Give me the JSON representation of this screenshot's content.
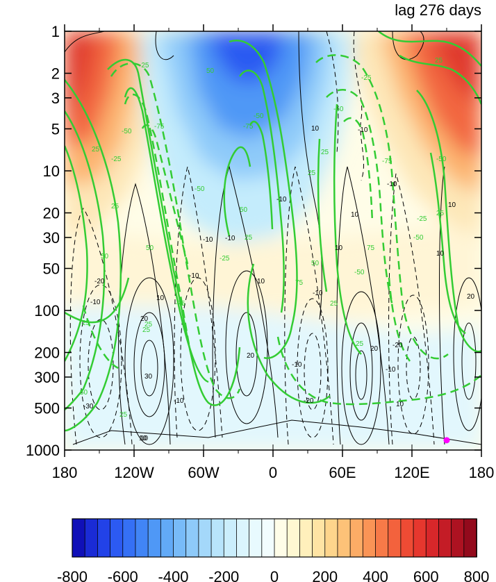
{
  "title": "lag 276 days",
  "chart_data": {
    "type": "heatmap",
    "title": "lag 276 days",
    "x_ticks": [
      "180",
      "120W",
      "60W",
      "0",
      "60E",
      "120E",
      "180"
    ],
    "x_values": [
      -180,
      -120,
      -60,
      0,
      60,
      120,
      180
    ],
    "xlim": [
      -180,
      180
    ],
    "y_ticks": [
      "1",
      "2",
      "3",
      "5",
      "10",
      "20",
      "30",
      "50",
      "100",
      "200",
      "300",
      "500",
      "1000"
    ],
    "y_values": [
      1,
      2,
      3,
      5,
      10,
      20,
      30,
      50,
      100,
      200,
      300,
      500,
      1000
    ],
    "ylim": [
      1000,
      1
    ],
    "y_scale": "log",
    "colorbar": {
      "levels": [
        -800,
        -750,
        -700,
        -650,
        -600,
        -550,
        -500,
        -450,
        -400,
        -350,
        -300,
        -250,
        -200,
        -150,
        -100,
        -50,
        0,
        50,
        100,
        150,
        200,
        250,
        300,
        350,
        400,
        450,
        500,
        550,
        600,
        650,
        700,
        750,
        800
      ],
      "labels": [
        "-800",
        "-600",
        "-400",
        "-200",
        "0",
        "200",
        "400",
        "600",
        "800"
      ],
      "label_values": [
        -800,
        -600,
        -400,
        -200,
        0,
        200,
        400,
        600,
        800
      ],
      "colors": [
        "#1010b8",
        "#1a2bd6",
        "#2242e8",
        "#2c5af2",
        "#3570f5",
        "#4185f6",
        "#4f98f6",
        "#62aaf7",
        "#78bbf8",
        "#8ecaf9",
        "#a4d8fa",
        "#b8e4fb",
        "#cbeefc",
        "#dbf5fd",
        "#e8fafe",
        "#f2fdfe",
        "#fffde8",
        "#fff8d2",
        "#fff0bc",
        "#ffe4a4",
        "#fed58c",
        "#fdc278",
        "#fcac66",
        "#fa9456",
        "#f77a48",
        "#f3623d",
        "#ee4b34",
        "#e6372e",
        "#d8272a",
        "#c41c26",
        "#ad1221",
        "#930a1c"
      ]
    },
    "black_contour_labels": [
      "10",
      "-10",
      "20",
      "-20",
      "30",
      "-30"
    ],
    "green_contour_labels": [
      "25",
      "-25",
      "50",
      "-50",
      "75",
      "-75"
    ],
    "marker": {
      "lon": 150,
      "pressure": 850,
      "color": "#ff00ff"
    }
  }
}
